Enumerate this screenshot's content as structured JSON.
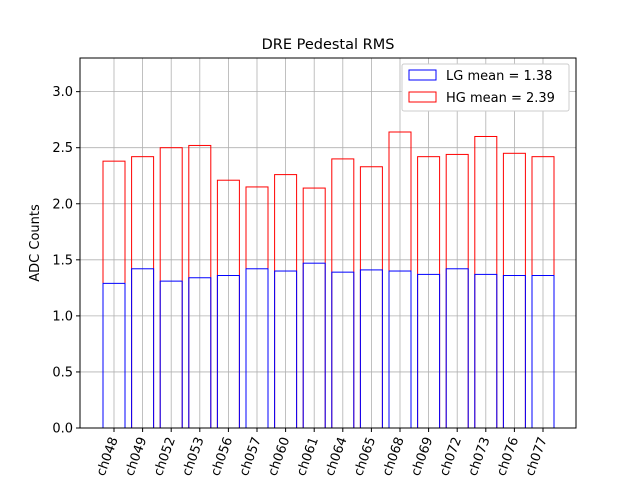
{
  "chart_data": {
    "type": "bar",
    "title": "DRE Pedestal RMS",
    "xlabel": "",
    "ylabel": "ADC Counts",
    "ylim": [
      0,
      3.3
    ],
    "yticks": [
      "0.0",
      "0.5",
      "1.0",
      "1.5",
      "2.0",
      "2.5",
      "3.0"
    ],
    "ytick_values": [
      0,
      0.5,
      1.0,
      1.5,
      2.0,
      2.5,
      3.0
    ],
    "grid": true,
    "legend_position": "top-right",
    "categories": [
      "ch048",
      "ch049",
      "ch052",
      "ch053",
      "ch056",
      "ch057",
      "ch060",
      "ch061",
      "ch064",
      "ch065",
      "ch068",
      "ch069",
      "ch072",
      "ch073",
      "ch076",
      "ch077"
    ],
    "series": [
      {
        "name": "HG mean = 2.39",
        "color": "#ff0000",
        "values": [
          2.38,
          2.42,
          2.5,
          2.52,
          2.21,
          2.15,
          2.26,
          2.14,
          2.4,
          2.33,
          2.64,
          2.42,
          2.44,
          2.6,
          2.45,
          2.42
        ]
      },
      {
        "name": "LG mean = 1.38",
        "color": "#0000ff",
        "values": [
          1.29,
          1.42,
          1.31,
          1.34,
          1.36,
          1.42,
          1.4,
          1.47,
          1.39,
          1.41,
          1.4,
          1.37,
          1.42,
          1.37,
          1.36,
          1.36
        ]
      }
    ]
  }
}
